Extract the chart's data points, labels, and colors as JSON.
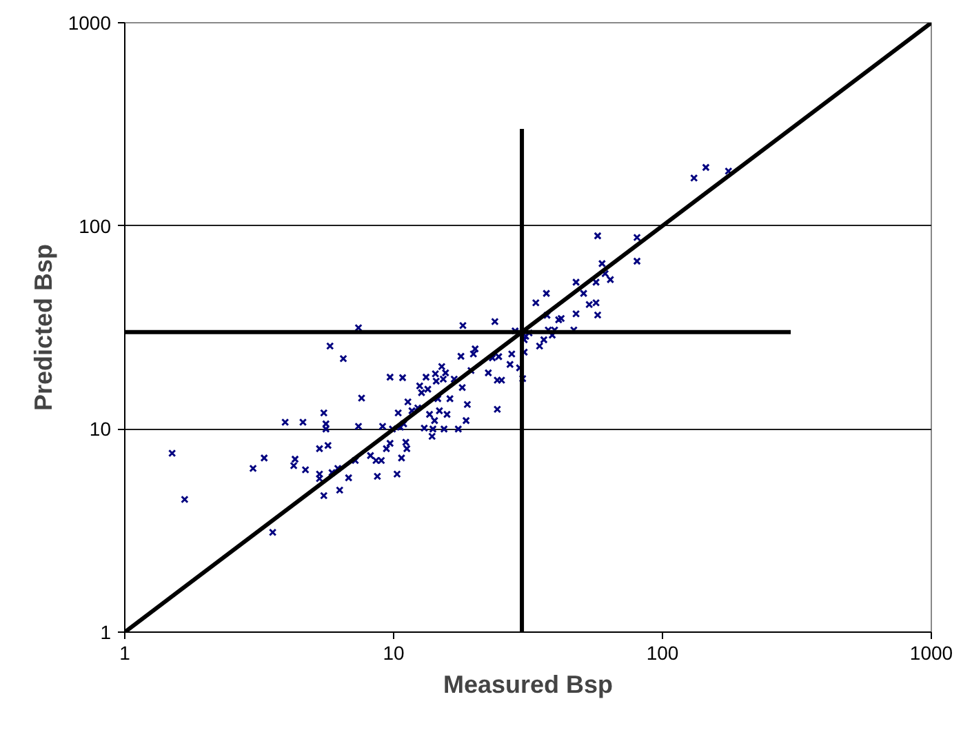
{
  "chart_data": {
    "type": "scatter",
    "xlabel": "Measured Bsp",
    "ylabel": "Predicted Bsp",
    "log": "xy",
    "grid": "y",
    "marker": "cross",
    "xlim": [
      1,
      1000
    ],
    "ylim": [
      1,
      1000
    ],
    "xticks": [
      1,
      10,
      100,
      1000
    ],
    "yticks": [
      1,
      10,
      100,
      1000
    ],
    "series": [
      {
        "color": "#000080",
        "x": [
          1.5,
          1.67,
          3.0,
          3.3,
          3.55,
          3.95,
          4.25,
          4.3,
          4.6,
          4.7,
          5.3,
          5.3,
          5.3,
          5.5,
          5.5,
          5.6,
          5.6,
          5.7,
          5.8,
          5.9,
          6.2,
          6.3,
          6.5,
          6.8,
          7.2,
          7.4,
          7.4,
          7.6,
          8.2,
          8.6,
          8.7,
          9.0,
          9.1,
          9.4,
          9.7,
          9.7,
          9.9,
          10.3,
          10.4,
          10.6,
          10.7,
          10.8,
          10.9,
          11.1,
          11.2,
          11.3,
          11.7,
          12.3,
          12.5,
          12.7,
          13.0,
          13.2,
          13.4,
          13.6,
          13.9,
          14.0,
          14.2,
          14.3,
          14.4,
          14.6,
          14.8,
          15.1,
          15.3,
          15.4,
          15.6,
          15.8,
          16.2,
          16.8,
          17.4,
          17.8,
          18.0,
          18.1,
          18.6,
          18.8,
          19.4,
          19.8,
          20.1,
          22.5,
          23.3,
          23.8,
          24.3,
          24.3,
          24.6,
          25.2,
          27.1,
          27.5,
          28.3,
          29.4,
          29.5,
          30.2,
          30.6,
          30.6,
          31.0,
          31.9,
          33.8,
          34.9,
          36.2,
          37.0,
          37.2,
          37.6,
          38.9,
          39.7,
          41.1,
          42.0,
          46.8,
          47.7,
          47.7,
          50.9,
          53.4,
          56.6,
          56.6,
          57.4,
          57.4,
          59.6,
          61.2,
          64.0,
          80.4,
          80.4,
          131,
          145,
          176
        ],
        "values": [
          7.6,
          4.5,
          6.4,
          7.2,
          3.1,
          10.8,
          6.6,
          7.1,
          10.8,
          6.3,
          8.0,
          6.0,
          5.7,
          12.0,
          4.7,
          10.6,
          10.0,
          8.3,
          25.6,
          6.1,
          6.4,
          5.0,
          22.2,
          5.75,
          7.0,
          10.3,
          31.5,
          14.2,
          7.4,
          7.0,
          5.85,
          7.0,
          10.3,
          8.0,
          18.0,
          8.5,
          10.0,
          6.0,
          12.0,
          10.2,
          7.2,
          17.9,
          10.6,
          8.6,
          8.0,
          13.6,
          12.3,
          12.7,
          16.3,
          15.1,
          10.1,
          18.0,
          15.7,
          11.8,
          9.2,
          10.0,
          11.0,
          18.7,
          17.2,
          14.1,
          12.3,
          20.3,
          17.6,
          10.0,
          18.9,
          11.8,
          14.1,
          17.6,
          10.0,
          22.8,
          16.0,
          32.3,
          11.0,
          13.2,
          19.4,
          23.4,
          24.8,
          18.9,
          22.4,
          33.8,
          17.4,
          12.5,
          22.7,
          17.4,
          20.8,
          23.4,
          30.4,
          20.0,
          29.7,
          17.7,
          27.5,
          23.9,
          28.6,
          29.7,
          41.8,
          25.6,
          27.5,
          46.5,
          36.3,
          30.7,
          29.0,
          30.7,
          34.5,
          35.0,
          30.7,
          52.8,
          36.9,
          46.5,
          41.0,
          41.8,
          52.8,
          36.4,
          89.3,
          65.2,
          58.2,
          54.4,
          87.7,
          67.0,
          172,
          194,
          186
        ]
      },
      {
        "type": "line",
        "marker": "none",
        "color": "#000000",
        "x": [
          1,
          1000
        ],
        "values": [
          1,
          1000
        ]
      },
      {
        "type": "line",
        "marker": "none",
        "color": "#000000",
        "x": [
          30,
          30
        ],
        "values": [
          1,
          300
        ]
      },
      {
        "type": "line",
        "marker": "none",
        "color": "#000000",
        "x": [
          1,
          300
        ],
        "values": [
          30,
          30
        ]
      }
    ]
  }
}
